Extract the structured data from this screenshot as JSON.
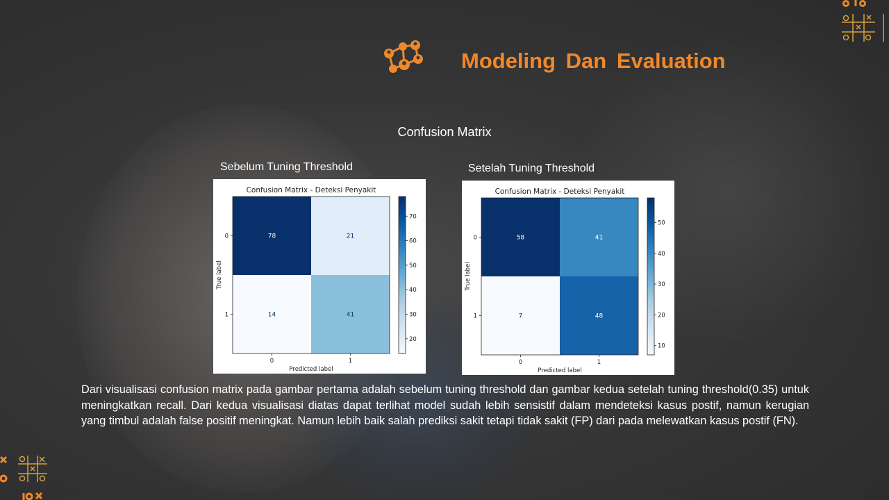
{
  "slide": {
    "title": "Modeling  Dan  Evaluation",
    "section_heading": "Confusion Matrix",
    "description": "Dari visualisasi confusion matrix pada gambar pertama adalah sebelum tuning threshold dan gambar kedua setelah tuning threshold(0.35) untuk meningkatkan recall. Dari kedua visualisasi diatas dapat terlihat model sudah lebih sensistif dalam mendeteksi kasus postif, namun kerugian yang timbul adalah false positif meningkat. Namun lebih baik salah prediksi sakit tetapi tidak sakit (FP) dari pada melewatkan kasus postif (FN).",
    "accent_color": "#f0882a",
    "icon": "network-nodes-icon"
  },
  "captions": {
    "before": "Sebelum Tuning Threshold",
    "after": "Setelah Tuning Threshold"
  },
  "chart_data": [
    {
      "type": "heatmap",
      "title": "Confusion Matrix - Deteksi Penyakit",
      "xlabel": "Predicted label",
      "ylabel": "True label",
      "x_ticks": [
        "0",
        "1"
      ],
      "y_ticks": [
        "0",
        "1"
      ],
      "matrix": [
        [
          78,
          21
        ],
        [
          14,
          41
        ]
      ],
      "colormap": "Blues",
      "colorbar_ticks": [
        20,
        30,
        40,
        50,
        60,
        70
      ],
      "colorbar_range": [
        14,
        78
      ]
    },
    {
      "type": "heatmap",
      "title": "Confusion Matrix - Deteksi Penyakit",
      "xlabel": "Predicted label",
      "ylabel": "True label",
      "x_ticks": [
        "0",
        "1"
      ],
      "y_ticks": [
        "0",
        "1"
      ],
      "matrix": [
        [
          58,
          41
        ],
        [
          7,
          48
        ]
      ],
      "colormap": "Blues",
      "colorbar_ticks": [
        10,
        20,
        30,
        40,
        50
      ],
      "colorbar_range": [
        7,
        58
      ]
    }
  ]
}
